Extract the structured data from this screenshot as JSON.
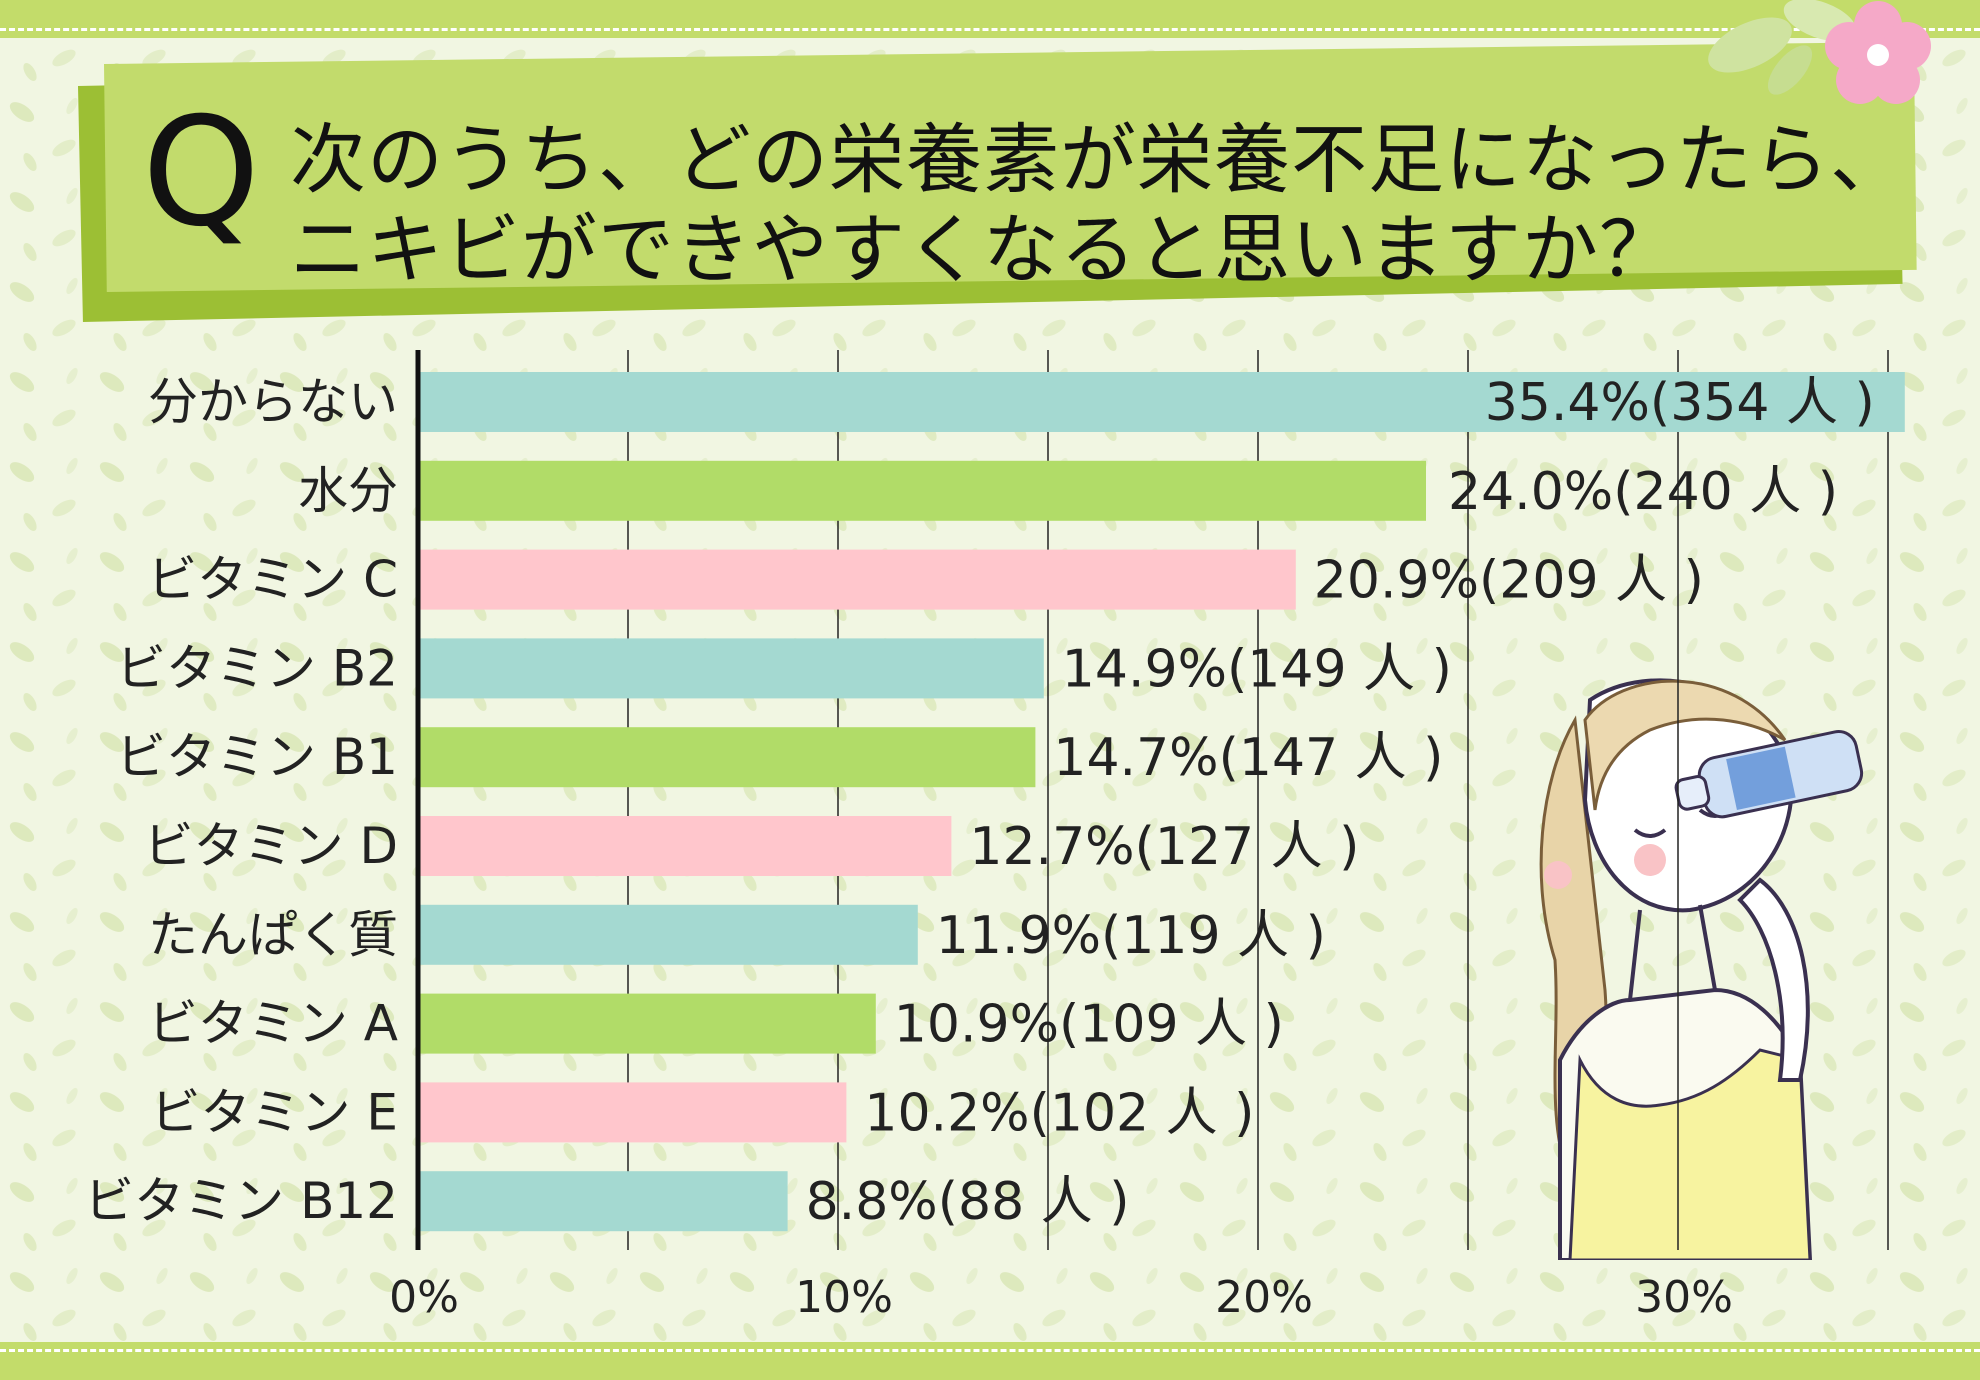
{
  "question": {
    "mark": "Q",
    "line1": "次のうち、どの栄養素が栄養不足になったら、",
    "line2": "ニキビができやすくなると思いますか？"
  },
  "chart_data": {
    "type": "bar",
    "orientation": "horizontal",
    "categories": [
      "分からない",
      "水分",
      "ビタミン C",
      "ビタミン B2",
      "ビタミン B1",
      "ビタミン D",
      "たんぱく質",
      "ビタミン A",
      "ビタミン E",
      "ビタミン B12"
    ],
    "values": [
      35.4,
      24.0,
      20.9,
      14.9,
      14.7,
      12.7,
      11.9,
      10.9,
      10.2,
      8.8
    ],
    "counts": [
      354,
      240,
      209,
      149,
      147,
      127,
      119,
      109,
      102,
      88
    ],
    "data_labels": [
      "35.4%(354 人 )",
      "24.0%(240 人 )",
      "20.9%(209 人 )",
      "14.9%(149 人 )",
      "14.7%(147 人 )",
      "12.7%(127 人 )",
      "11.9%(119 人 )",
      "10.9%(109 人 )",
      "10.2%(102 人 )",
      "8.8%(88 人 )"
    ],
    "bar_colors": [
      "#a4d9d1",
      "#b1dc68",
      "#ffc6cc",
      "#a4d9d1",
      "#b1dc68",
      "#ffc6cc",
      "#a4d9d1",
      "#b1dc68",
      "#ffc6cc",
      "#a4d9d1"
    ],
    "xticks": [
      "0%",
      "10%",
      "20%",
      "30%"
    ],
    "xtick_values": [
      0,
      10,
      20,
      30
    ],
    "xlim": [
      0,
      35.4
    ],
    "grid": true,
    "title": "",
    "xlabel": "",
    "ylabel": ""
  }
}
